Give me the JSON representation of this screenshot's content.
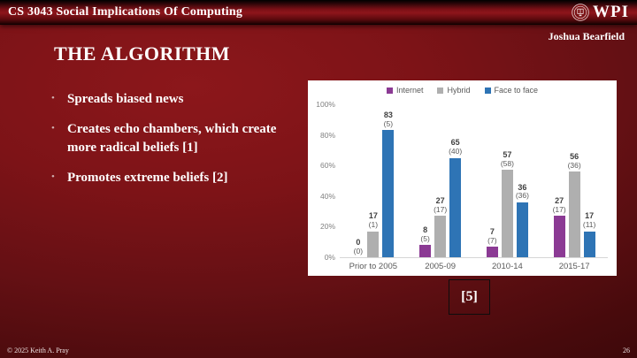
{
  "header": {
    "course_title": "CS 3043 Social Implications Of Computing",
    "logo_text": "WPI"
  },
  "author": "Joshua Bearfield",
  "title": "THE ALGORITHM",
  "bullet_icon": "•",
  "bullets": [
    "Spreads biased news",
    "Creates echo chambers, which create more radical beliefs [1]",
    "Promotes extreme beliefs [2]"
  ],
  "citation": "[5]",
  "footer": {
    "copyright": "© 2025 Keith A. Pray",
    "page_number": "26"
  },
  "chart_data": {
    "type": "bar",
    "title": "",
    "xlabel": "",
    "ylabel": "",
    "categories": [
      "Prior to 2005",
      "2005-09",
      "2010-14",
      "2015-17"
    ],
    "series": [
      {
        "name": "Internet",
        "color": "#8B3A94",
        "values": [
          0,
          8,
          7,
          27
        ],
        "counts": [
          0,
          5,
          7,
          17
        ]
      },
      {
        "name": "Hybrid",
        "color": "#AFAFAF",
        "values": [
          17,
          27,
          57,
          56
        ],
        "counts": [
          1,
          17,
          58,
          36
        ]
      },
      {
        "name": "Face to face",
        "color": "#2E74B5",
        "values": [
          83,
          65,
          36,
          17
        ],
        "counts": [
          5,
          40,
          36,
          11
        ]
      }
    ],
    "bar_label_format": "value (count)",
    "y_ticks": [
      "0%",
      "20%",
      "40%",
      "60%",
      "80%",
      "100%"
    ],
    "ylim": [
      0,
      100
    ],
    "grid": false,
    "legend_position": "top"
  },
  "colors": {
    "slide_background": "#7d1317",
    "slide_edge": "#330607",
    "chart_background": "#ffffff",
    "internet": "#8B3A94",
    "hybrid": "#AFAFAF",
    "face_to_face": "#2E74B5",
    "text": "#ffffff"
  }
}
